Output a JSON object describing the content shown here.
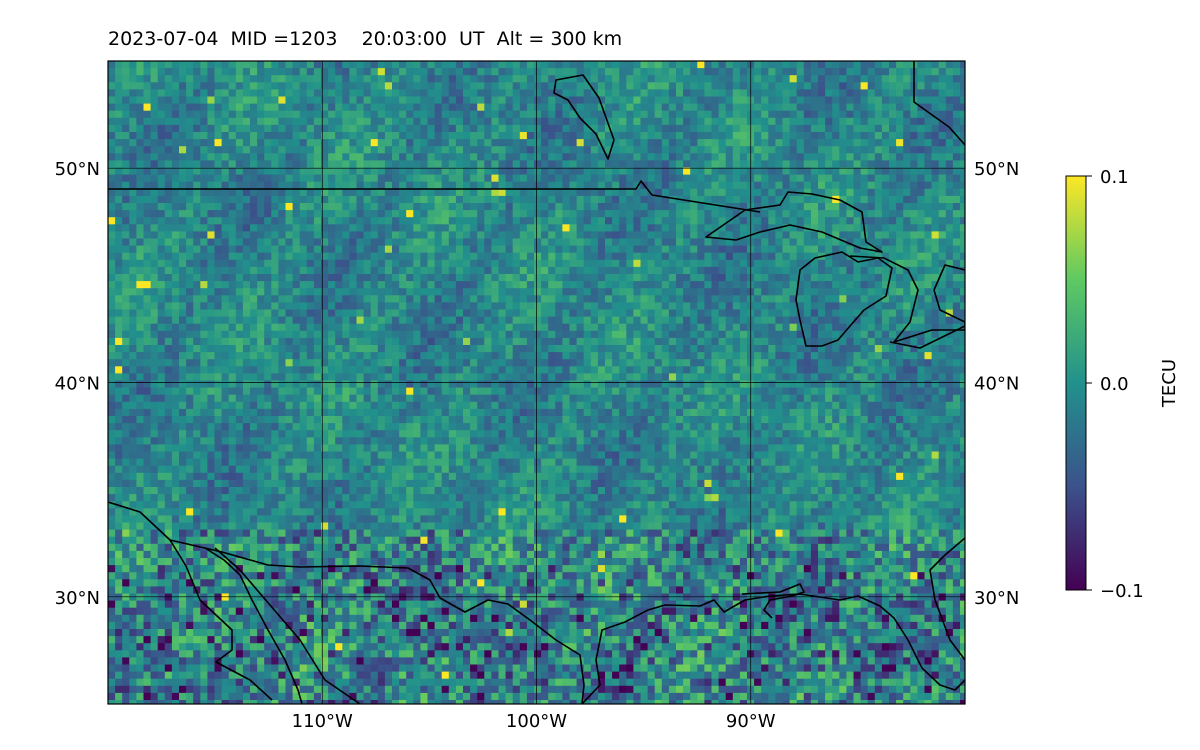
{
  "title": "2023-07-04  MID =1203    20:03:00  UT  Alt = 300 km",
  "map": {
    "lon_range": [
      -120,
      -80
    ],
    "lat_range": [
      25,
      55
    ],
    "lon_ticks": [
      {
        "value": -110,
        "label": "110°W"
      },
      {
        "value": -100,
        "label": "100°W"
      },
      {
        "value": -90,
        "label": "90°W"
      }
    ],
    "lat_ticks": [
      {
        "value": 30,
        "label": "30°N"
      },
      {
        "value": 40,
        "label": "40°N"
      },
      {
        "value": 50,
        "label": "50°N"
      }
    ],
    "grid": true,
    "coastline_color": "#000000"
  },
  "colorbar": {
    "label": "TECU",
    "min": -0.1,
    "max": 0.1,
    "ticks": [
      {
        "value": 0.1,
        "label": "0.1"
      },
      {
        "value": 0.0,
        "label": "0.0"
      },
      {
        "value": -0.1,
        "label": "−0.1"
      }
    ],
    "colormap": [
      "#440154",
      "#3b528b",
      "#21918c",
      "#5ec962",
      "#fde725"
    ]
  },
  "chart_data": {
    "type": "heatmap",
    "title": "2023-07-04  MID =1203    20:03:00  UT  Alt = 300 km",
    "variable": "TECU",
    "x": "longitude",
    "y": "latitude",
    "xlim": [
      -120,
      -80
    ],
    "ylim": [
      25,
      55
    ],
    "vmin": -0.1,
    "vmax": 0.1
  }
}
